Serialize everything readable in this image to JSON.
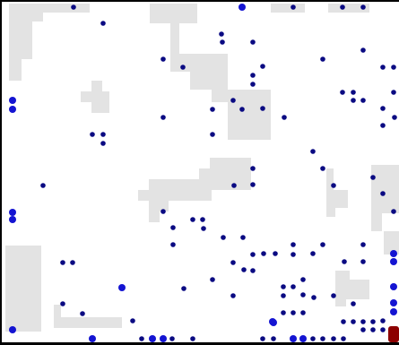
{
  "colors": {
    "background": "#ffffff",
    "obstacle": "#e3e3e3",
    "agent": "#0a0a82",
    "agent_large": "#1414d2",
    "goal": "#8c0000",
    "border": "#000000"
  },
  "legend": {
    "obstacle_label": "",
    "agent_label": "",
    "goal_label": ""
  }
}
